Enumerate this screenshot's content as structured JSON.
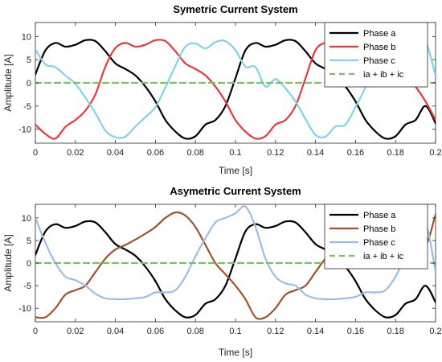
{
  "chart_data": [
    {
      "type": "line",
      "title": "Symetric Current System",
      "xlabel": "Time [s]",
      "ylabel": "Amplitude [A]",
      "xlim": [
        0,
        0.2
      ],
      "ylim": [
        -13,
        13
      ],
      "xticks": [
        0,
        0.02,
        0.04,
        0.06,
        0.08,
        0.1,
        0.12,
        0.14,
        0.16,
        0.18,
        0.2
      ],
      "xtick_labels": [
        "0",
        "0.02",
        "0.04",
        "0.06",
        "0.08",
        "0.1",
        "0.12",
        "0.14",
        "0.16",
        "0.18",
        "0.2"
      ],
      "yticks": [
        -10,
        -5,
        0,
        5,
        10
      ],
      "ytick_labels": [
        "-10",
        "-5",
        "0",
        "5",
        "10"
      ],
      "legend_position": "top-right",
      "grid": false,
      "series": [
        {
          "name": "Phase a",
          "color": "#000000",
          "style": "solid",
          "x": [
            0,
            0.005,
            0.01,
            0.015,
            0.02,
            0.025,
            0.03,
            0.035,
            0.04,
            0.045,
            0.05,
            0.055,
            0.06,
            0.065,
            0.07,
            0.075,
            0.08,
            0.085,
            0.09,
            0.095,
            0.1,
            0.105,
            0.11,
            0.115,
            0.12,
            0.125,
            0.13,
            0.135,
            0.14,
            0.145,
            0.15,
            0.155,
            0.16,
            0.165,
            0.17,
            0.175,
            0.18,
            0.185,
            0.19,
            0.195,
            0.2
          ],
          "y": [
            1.8,
            7.0,
            8.6,
            7.8,
            8.2,
            9.2,
            9.0,
            6.8,
            4.2,
            3.0,
            1.6,
            -0.8,
            -4.0,
            -8.0,
            -10.5,
            -12.0,
            -11.5,
            -9.0,
            -8.0,
            -5.0,
            1.0,
            7.0,
            8.6,
            7.8,
            8.2,
            9.2,
            9.0,
            6.8,
            4.2,
            3.0,
            1.6,
            -0.8,
            -4.0,
            -8.0,
            -10.5,
            -12.0,
            -11.5,
            -9.0,
            -8.0,
            -5.0,
            -8.7
          ]
        },
        {
          "name": "Phase b",
          "color": "#e8383d",
          "style": "solid",
          "x": [
            0,
            0.005,
            0.01,
            0.015,
            0.02,
            0.025,
            0.03,
            0.035,
            0.04,
            0.045,
            0.05,
            0.055,
            0.06,
            0.065,
            0.07,
            0.075,
            0.08,
            0.085,
            0.09,
            0.095,
            0.1,
            0.105,
            0.11,
            0.115,
            0.12,
            0.125,
            0.13,
            0.135,
            0.14,
            0.145,
            0.15,
            0.155,
            0.16,
            0.165,
            0.17,
            0.175,
            0.18,
            0.185,
            0.19,
            0.195,
            0.2
          ],
          "y": [
            -9.0,
            -11.0,
            -12.0,
            -9.5,
            -8.0,
            -6.0,
            -2.5,
            3.5,
            7.5,
            8.6,
            7.8,
            8.2,
            9.2,
            9.0,
            6.8,
            4.2,
            3.0,
            1.6,
            -0.8,
            -4.0,
            -8.0,
            -10.5,
            -12.0,
            -11.5,
            -9.0,
            -8.0,
            -5.0,
            1.0,
            7.0,
            8.6,
            7.8,
            8.2,
            9.2,
            9.0,
            6.8,
            4.2,
            3.0,
            1.6,
            -0.8,
            -4.0,
            -8.0
          ]
        },
        {
          "name": "Phase c",
          "color": "#7fd3ea",
          "style": "solid",
          "x": [
            0,
            0.005,
            0.01,
            0.015,
            0.02,
            0.025,
            0.03,
            0.035,
            0.04,
            0.045,
            0.05,
            0.055,
            0.06,
            0.065,
            0.07,
            0.075,
            0.08,
            0.085,
            0.09,
            0.095,
            0.1,
            0.105,
            0.11,
            0.115,
            0.12,
            0.125,
            0.13,
            0.135,
            0.14,
            0.145,
            0.15,
            0.155,
            0.16,
            0.165,
            0.17,
            0.175,
            0.18,
            0.185,
            0.19,
            0.195,
            0.2
          ],
          "y": [
            7.2,
            4.0,
            3.4,
            1.6,
            -0.2,
            -3.2,
            -6.5,
            -10.3,
            -11.7,
            -11.6,
            -9.4,
            -7.4,
            -5.2,
            -1.0,
            3.7,
            7.8,
            8.5,
            7.4,
            8.8,
            9.0,
            7.0,
            3.5,
            3.4,
            -0.8,
            0.8,
            -1.2,
            -4.0,
            -7.8,
            -11.2,
            -11.6,
            -9.4,
            -9.0,
            -5.2,
            -1.0,
            3.7,
            7.8,
            8.5,
            7.4,
            8.8,
            9.0,
            1.5
          ]
        },
        {
          "name": "ia + ib + ic",
          "color": "#77c160",
          "style": "dashed",
          "x": [
            0,
            0.2
          ],
          "y": [
            0,
            0
          ]
        }
      ]
    },
    {
      "type": "line",
      "title": "Asymetric Current System",
      "xlabel": "Time [s]",
      "ylabel": "Amplitude [A]",
      "xlim": [
        0,
        0.2
      ],
      "ylim": [
        -13,
        13
      ],
      "xticks": [
        0,
        0.02,
        0.04,
        0.06,
        0.08,
        0.1,
        0.12,
        0.14,
        0.16,
        0.18,
        0.2
      ],
      "xtick_labels": [
        "0",
        "0.02",
        "0.04",
        "0.06",
        "0.08",
        "0.1",
        "0.12",
        "0.14",
        "0.16",
        "0.18",
        "0.2"
      ],
      "yticks": [
        -10,
        -5,
        0,
        5,
        10
      ],
      "ytick_labels": [
        "-10",
        "-5",
        "0",
        "5",
        "10"
      ],
      "legend_position": "top-right",
      "grid": false,
      "series": [
        {
          "name": "Phase a",
          "color": "#000000",
          "style": "solid",
          "x": [
            0,
            0.005,
            0.01,
            0.015,
            0.02,
            0.025,
            0.03,
            0.035,
            0.04,
            0.045,
            0.05,
            0.055,
            0.06,
            0.065,
            0.07,
            0.075,
            0.08,
            0.085,
            0.09,
            0.095,
            0.1,
            0.105,
            0.11,
            0.115,
            0.12,
            0.125,
            0.13,
            0.135,
            0.14,
            0.145,
            0.15,
            0.155,
            0.16,
            0.165,
            0.17,
            0.175,
            0.18,
            0.185,
            0.19,
            0.195,
            0.2
          ],
          "y": [
            1.8,
            7.0,
            8.6,
            7.8,
            8.2,
            9.2,
            9.0,
            6.8,
            4.2,
            3.0,
            1.6,
            -0.8,
            -4.0,
            -8.0,
            -10.5,
            -12.0,
            -11.5,
            -9.0,
            -8.0,
            -5.0,
            1.0,
            7.0,
            8.6,
            7.8,
            8.2,
            9.2,
            9.0,
            6.8,
            4.2,
            3.0,
            1.6,
            -0.8,
            -4.0,
            -8.0,
            -10.5,
            -12.0,
            -11.5,
            -9.0,
            -8.0,
            -5.0,
            -8.7
          ]
        },
        {
          "name": "Phase b",
          "color": "#a0522d",
          "style": "solid",
          "x": [
            0,
            0.005,
            0.01,
            0.015,
            0.02,
            0.025,
            0.03,
            0.035,
            0.04,
            0.045,
            0.05,
            0.055,
            0.06,
            0.065,
            0.07,
            0.075,
            0.08,
            0.085,
            0.09,
            0.095,
            0.1,
            0.105,
            0.11,
            0.115,
            0.12,
            0.125,
            0.13,
            0.135,
            0.14,
            0.145,
            0.15,
            0.155,
            0.16,
            0.165,
            0.17,
            0.175,
            0.18,
            0.185,
            0.19,
            0.195,
            0.2
          ],
          "y": [
            -12.0,
            -12.0,
            -10.0,
            -7.0,
            -6.0,
            -5.0,
            -2.0,
            1.0,
            3.0,
            4.0,
            5.2,
            6.5,
            8.0,
            10.0,
            11.2,
            10.5,
            8.0,
            4.0,
            0.0,
            -2.5,
            -5.0,
            -8.0,
            -12.0,
            -12.0,
            -10.0,
            -7.0,
            -6.0,
            -5.0,
            -2.0,
            1.0,
            3.0,
            4.0,
            5.2,
            6.5,
            8.0,
            10.0,
            11.2,
            10.5,
            8.0,
            4.0,
            10.8
          ]
        },
        {
          "name": "Phase c",
          "color": "#9dbde9",
          "style": "solid",
          "x": [
            0,
            0.005,
            0.01,
            0.015,
            0.02,
            0.025,
            0.03,
            0.035,
            0.04,
            0.045,
            0.05,
            0.055,
            0.06,
            0.065,
            0.07,
            0.075,
            0.08,
            0.085,
            0.09,
            0.095,
            0.1,
            0.105,
            0.11,
            0.115,
            0.12,
            0.125,
            0.13,
            0.135,
            0.14,
            0.145,
            0.15,
            0.155,
            0.16,
            0.165,
            0.17,
            0.175,
            0.18,
            0.185,
            0.19,
            0.195,
            0.2
          ],
          "y": [
            10.0,
            4.5,
            0.0,
            -3.0,
            -3.8,
            -5.0,
            -6.8,
            -7.8,
            -8.0,
            -8.0,
            -7.8,
            -7.5,
            -6.5,
            -6.5,
            -6.0,
            -3.0,
            1.5,
            5.5,
            9.0,
            10.0,
            11.0,
            12.5,
            8.0,
            1.0,
            -3.0,
            -4.5,
            -5.0,
            -7.0,
            -7.8,
            -8.0,
            -8.0,
            -7.8,
            -7.5,
            -6.5,
            -6.5,
            -6.0,
            -3.0,
            1.5,
            5.5,
            9.0,
            -2.0
          ]
        },
        {
          "name": "ia + ib + ic",
          "color": "#77c160",
          "style": "dashed",
          "x": [
            0,
            0.2
          ],
          "y": [
            0,
            0
          ]
        }
      ]
    }
  ]
}
